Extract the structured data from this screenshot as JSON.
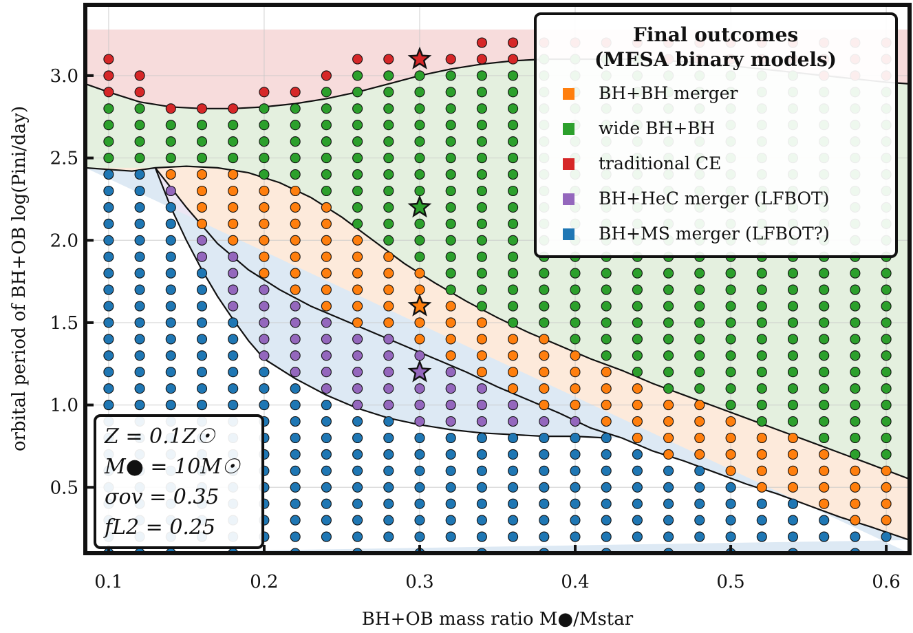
{
  "chart_data": {
    "type": "scatter",
    "x_axis": {
      "label": "BH+OB mass ratio M●/Mstar",
      "range": [
        0.085,
        0.615
      ],
      "ticks": [
        0.1,
        0.2,
        0.3,
        0.4,
        0.5,
        0.6
      ],
      "tick_labels": [
        "0.1",
        "0.2",
        "0.3",
        "0.4",
        "0.5",
        "0.6"
      ]
    },
    "y_axis": {
      "label": "orbital period of BH+OB log(Pini/day)",
      "range": [
        0.1,
        3.43
      ],
      "ticks": [
        0.5,
        1.0,
        1.5,
        2.0,
        2.5,
        3.0
      ],
      "tick_labels": [
        "0.5",
        "1.0",
        "1.5",
        "2.0",
        "2.5",
        "3.0"
      ]
    },
    "grid": true,
    "legend": {
      "title_line1": "Final outcomes",
      "title_line2": "(MESA binary models)",
      "position": "top-right",
      "entries": [
        {
          "key": "bhbh_merger",
          "label": "BH+BH merger",
          "color": "#ff7f0e"
        },
        {
          "key": "wide_bhbh",
          "label": "wide BH+BH",
          "color": "#2ca02c"
        },
        {
          "key": "traditional_ce",
          "label": "traditional CE",
          "color": "#d62728"
        },
        {
          "key": "bhhec_merger",
          "label": "BH+HeC merger (LFBOT)",
          "color": "#9467bd"
        },
        {
          "key": "bhms_merger",
          "label": "BH+MS merger (LFBOT?)",
          "color": "#1f77b4"
        }
      ]
    },
    "region_colors": {
      "ce": "#f7dcdc",
      "wide": "#e4f0df",
      "bhbh": "#fdeadb",
      "hec": "#ece6f4",
      "ms": "#dde9f4"
    },
    "boundaries": {
      "ce_upper": [
        [
          0.085,
          3.28
        ],
        [
          0.615,
          3.28
        ]
      ],
      "wide_top": [
        [
          0.085,
          2.95
        ],
        [
          0.1,
          2.9
        ],
        [
          0.12,
          2.84
        ],
        [
          0.14,
          2.81
        ],
        [
          0.16,
          2.8
        ],
        [
          0.18,
          2.8
        ],
        [
          0.2,
          2.81
        ],
        [
          0.22,
          2.83
        ],
        [
          0.24,
          2.86
        ],
        [
          0.26,
          2.9
        ],
        [
          0.28,
          2.95
        ],
        [
          0.3,
          3.0
        ],
        [
          0.32,
          3.04
        ],
        [
          0.34,
          3.07
        ],
        [
          0.36,
          3.09
        ],
        [
          0.38,
          3.1
        ],
        [
          0.4,
          3.1
        ],
        [
          0.42,
          3.1
        ],
        [
          0.44,
          3.1
        ],
        [
          0.46,
          3.09
        ],
        [
          0.48,
          3.08
        ],
        [
          0.5,
          3.06
        ],
        [
          0.52,
          3.04
        ],
        [
          0.54,
          3.02
        ],
        [
          0.56,
          3.0
        ],
        [
          0.58,
          2.98
        ],
        [
          0.6,
          2.96
        ],
        [
          0.615,
          2.95
        ]
      ],
      "bh_top": [
        [
          0.085,
          2.44
        ],
        [
          0.1,
          2.43
        ],
        [
          0.115,
          2.42
        ],
        [
          0.13,
          2.44
        ],
        [
          0.15,
          2.45
        ],
        [
          0.17,
          2.44
        ],
        [
          0.19,
          2.41
        ],
        [
          0.21,
          2.35
        ],
        [
          0.23,
          2.26
        ],
        [
          0.25,
          2.14
        ],
        [
          0.27,
          2.0
        ],
        [
          0.29,
          1.86
        ],
        [
          0.31,
          1.74
        ],
        [
          0.33,
          1.63
        ],
        [
          0.35,
          1.53
        ],
        [
          0.37,
          1.44
        ],
        [
          0.39,
          1.36
        ],
        [
          0.41,
          1.28
        ],
        [
          0.43,
          1.21
        ],
        [
          0.45,
          1.13
        ],
        [
          0.47,
          1.06
        ],
        [
          0.49,
          0.99
        ],
        [
          0.51,
          0.92
        ],
        [
          0.53,
          0.85
        ],
        [
          0.55,
          0.78
        ],
        [
          0.57,
          0.71
        ],
        [
          0.59,
          0.64
        ],
        [
          0.615,
          0.55
        ]
      ],
      "bh_bottom": [
        [
          0.13,
          2.44
        ],
        [
          0.15,
          2.2
        ],
        [
          0.17,
          1.98
        ],
        [
          0.19,
          1.82
        ],
        [
          0.21,
          1.7
        ],
        [
          0.23,
          1.6
        ],
        [
          0.25,
          1.52
        ],
        [
          0.27,
          1.44
        ],
        [
          0.29,
          1.36
        ],
        [
          0.31,
          1.28
        ],
        [
          0.33,
          1.2
        ],
        [
          0.35,
          1.11
        ],
        [
          0.37,
          1.03
        ],
        [
          0.39,
          0.95
        ],
        [
          0.41,
          0.86
        ],
        [
          0.43,
          0.8
        ],
        [
          0.45,
          0.72
        ],
        [
          0.47,
          0.66
        ],
        [
          0.49,
          0.59
        ],
        [
          0.51,
          0.52
        ],
        [
          0.53,
          0.46
        ],
        [
          0.55,
          0.39
        ],
        [
          0.57,
          0.32
        ],
        [
          0.59,
          0.26
        ],
        [
          0.615,
          0.18
        ]
      ],
      "hec_bottom": [
        [
          0.13,
          2.44
        ],
        [
          0.14,
          2.2
        ],
        [
          0.15,
          2.0
        ],
        [
          0.16,
          1.82
        ],
        [
          0.17,
          1.66
        ],
        [
          0.18,
          1.52
        ],
        [
          0.19,
          1.39
        ],
        [
          0.2,
          1.28
        ],
        [
          0.22,
          1.16
        ],
        [
          0.24,
          1.06
        ],
        [
          0.26,
          0.98
        ],
        [
          0.28,
          0.92
        ],
        [
          0.3,
          0.88
        ],
        [
          0.32,
          0.85
        ],
        [
          0.34,
          0.83
        ],
        [
          0.36,
          0.82
        ],
        [
          0.38,
          0.81
        ],
        [
          0.4,
          0.81
        ],
        [
          0.42,
          0.8
        ]
      ]
    },
    "points": {
      "x_values": [
        0.1,
        0.12,
        0.14,
        0.16,
        0.18,
        0.2,
        0.22,
        0.24,
        0.26,
        0.28,
        0.3,
        0.32,
        0.34,
        0.36,
        0.38,
        0.4,
        0.42,
        0.44,
        0.46,
        0.48,
        0.5,
        0.52,
        0.54,
        0.56,
        0.58,
        0.6
      ],
      "y_range": [
        0.1,
        3.2
      ],
      "y_step": 0.1,
      "ce_top": [
        3.1,
        3.0,
        2.8,
        2.8,
        2.8,
        2.9,
        2.9,
        3.0,
        3.1,
        3.1,
        3.1,
        3.1,
        3.2,
        3.2,
        3.2,
        3.2,
        3.2,
        3.2,
        3.2,
        3.2,
        3.2,
        3.2,
        3.2,
        3.2,
        3.2,
        3.2
      ],
      "wide_top": [
        2.8,
        2.8,
        2.7,
        2.7,
        2.7,
        2.8,
        2.8,
        2.9,
        3.0,
        3.0,
        3.0,
        3.0,
        3.0,
        3.0,
        3.1,
        3.1,
        3.1,
        3.1,
        3.0,
        3.0,
        3.0,
        3.0,
        3.0,
        2.9,
        2.9,
        2.9
      ],
      "note": "Model grid: colour of each point follows the outcome region in which it lies."
    },
    "highlighted_models": [
      {
        "x": 0.3,
        "y": 3.1,
        "outcome": "traditional_ce"
      },
      {
        "x": 0.3,
        "y": 2.2,
        "outcome": "wide_bhbh"
      },
      {
        "x": 0.3,
        "y": 1.6,
        "outcome": "bhbh_merger"
      },
      {
        "x": 0.3,
        "y": 1.2,
        "outcome": "bhhec_merger"
      }
    ],
    "info_box": {
      "line1": "Z = 0.1Z☉",
      "line2": "M● = 10M☉",
      "line3": "σov = 0.35",
      "line4": "fL2 = 0.25",
      "position": "bottom-left"
    }
  }
}
